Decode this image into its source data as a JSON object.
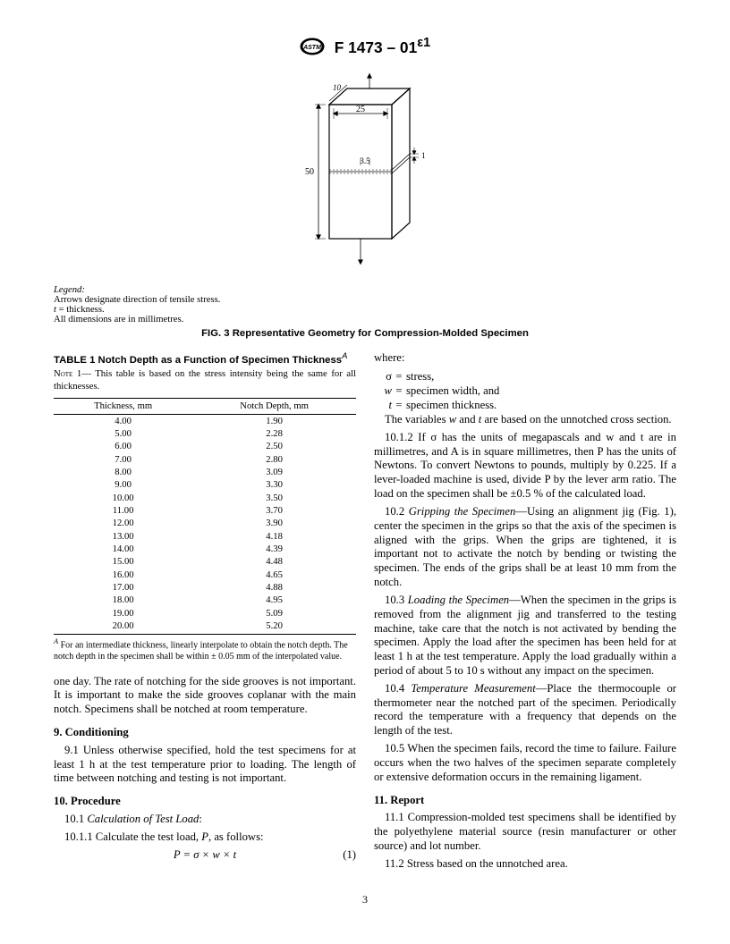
{
  "header": {
    "designation": "F 1473 – 01",
    "superscript": "ε1"
  },
  "figure": {
    "caption": "FIG. 3 Representative Geometry for Compression-Molded Specimen",
    "legend_title": "Legend:",
    "legend_line1": "Arrows designate direction of tensile stress.",
    "legend_line2a": "t",
    "legend_line2b": " = thickness.",
    "legend_line3": "All dimensions are in millimetres.",
    "dim_width": "25",
    "dim_height": "50",
    "dim_notch": "3.5",
    "dim_side": "1",
    "dim_depth": "10"
  },
  "table": {
    "title_prefix": "TABLE 1  ",
    "title": "Notch Depth as a Function of Specimen Thickness",
    "title_super": "A",
    "note_label": "Note",
    "note_num": " 1—",
    "note_text": " This table is based on the stress intensity being the same for all thicknesses.",
    "col1": "Thickness, mm",
    "col2": "Notch Depth, mm",
    "rows": [
      [
        "4.00",
        "1.90"
      ],
      [
        "5.00",
        "2.28"
      ],
      [
        "6.00",
        "2.50"
      ],
      [
        "7.00",
        "2.80"
      ],
      [
        "8.00",
        "3.09"
      ],
      [
        "9.00",
        "3.30"
      ],
      [
        "10.00",
        "3.50"
      ],
      [
        "11.00",
        "3.70"
      ],
      [
        "12.00",
        "3.90"
      ],
      [
        "13.00",
        "4.18"
      ],
      [
        "14.00",
        "4.39"
      ],
      [
        "15.00",
        "4.48"
      ],
      [
        "16.00",
        "4.65"
      ],
      [
        "17.00",
        "4.88"
      ],
      [
        "18.00",
        "4.95"
      ],
      [
        "19.00",
        "5.09"
      ],
      [
        "20.00",
        "5.20"
      ]
    ],
    "footnote_sup": "A",
    "footnote": " For an intermediate thickness, linearly interpolate to obtain the notch depth. The notch depth in the specimen shall be within ± 0.05 mm of the interpolated value."
  },
  "body": {
    "p_oneDay": "one day. The rate of notching for the side grooves is not important. It is important to make the side grooves coplanar with the main notch. Specimens shall be notched at room temperature.",
    "h9": "9. Conditioning",
    "p9_1": "9.1 Unless otherwise specified, hold the test specimens for at least 1 h at the test temperature prior to loading. The length of time between notching and testing is not important.",
    "h10": "10. Procedure",
    "p10_1_label": "10.1 ",
    "p10_1_ital": "Calculation of Test Load",
    "p10_1_colon": ":",
    "p10_1_1a": "10.1.1 Calculate the test load, ",
    "p10_1_1_var": "P",
    "p10_1_1b": ", as follows:",
    "eq": "P = σ × w × t",
    "eqno": "(1)",
    "where": "where:",
    "def_sigma": "stress,",
    "def_w": "specimen width, and",
    "def_t": "specimen thickness.",
    "p_var_a": "The variables ",
    "p_var_w": "w",
    "p_var_b": " and ",
    "p_var_t": "t",
    "p_var_c": " are based on the unnotched cross section.",
    "p10_1_2": "10.1.2 If σ has the units of megapascals and w and t are in millimetres, and A is in square millimetres, then P has the units of Newtons. To convert Newtons to pounds, multiply by 0.225. If a lever-loaded machine is used, divide P by the lever arm ratio. The load on the specimen shall be ±0.5 % of the calculated load.",
    "p10_2_lbl": "10.2 ",
    "p10_2_ital": "Gripping the Specimen",
    "p10_2": "—Using an alignment jig (Fig. 1), center the specimen in the grips so that the axis of the specimen is aligned with the grips. When the grips are tightened, it is important not to activate the notch by bending or twisting the specimen. The ends of the grips shall be at least 10 mm from the notch.",
    "p10_3_lbl": "10.3 ",
    "p10_3_ital": "Loading the Specimen",
    "p10_3": "—When the specimen in the grips is removed from the alignment jig and transferred to the testing machine, take care that the notch is not activated by bending the specimen. Apply the load after the specimen has been held for at least 1 h at the test temperature. Apply the load gradually within a period of about 5 to 10 s without any impact on the specimen.",
    "p10_4_lbl": "10.4 ",
    "p10_4_ital": "Temperature Measurement",
    "p10_4": "—Place the thermocouple or thermometer near the notched part of the specimen. Periodically record the temperature with a frequency that depends on the length of the test.",
    "p10_5": "10.5 When the specimen fails, record the time to failure. Failure occurs when the two halves of the specimen separate completely or extensive deformation occurs in the remaining ligament.",
    "h11": "11. Report",
    "p11_1": "11.1 Compression-molded test specimens shall be identified by the polyethylene material source (resin manufacturer or other source) and lot number.",
    "p11_2": "11.2 Stress based on the unnotched area."
  },
  "page_number": "3"
}
